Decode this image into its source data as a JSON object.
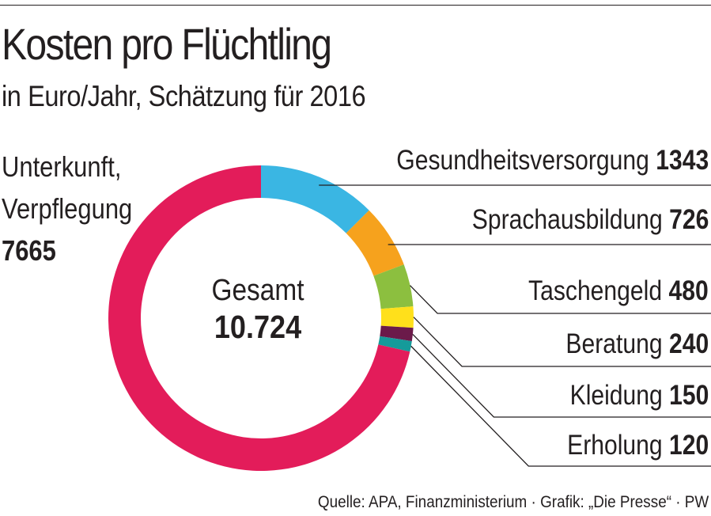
{
  "header": {
    "title": "Kosten pro Flüchtling",
    "subtitle": "in Euro/Jahr, Schätzung für 2016"
  },
  "center": {
    "label": "Gesamt",
    "total": "10.724"
  },
  "source": "Quelle: APA, Finanzministerium · Grafik: „Die Presse“ · PW",
  "chart_data": {
    "type": "pie",
    "donut": true,
    "total": 10724,
    "slices": [
      {
        "label": "Gesundheitsversorgung",
        "value": 1343,
        "value_text": "1343",
        "color": "#3ab6e3"
      },
      {
        "label": "Sprachausbildung",
        "value": 726,
        "value_text": "726",
        "color": "#f6a21d"
      },
      {
        "label": "Taschengeld",
        "value": 480,
        "value_text": "480",
        "color": "#8cbf3f"
      },
      {
        "label": "Beratung",
        "value": 240,
        "value_text": "240",
        "color": "#ffe01b"
      },
      {
        "label": "Kleidung",
        "value": 150,
        "value_text": "150",
        "color": "#6b1a4a"
      },
      {
        "label": "Erholung",
        "value": 120,
        "value_text": "120",
        "color": "#159b9a"
      },
      {
        "label": "Unterkunft, Verpflegung",
        "label_lines": [
          "Unterkunft,",
          "Verpflegung"
        ],
        "value": 7665,
        "value_text": "7665",
        "color": "#e31c5a"
      }
    ]
  }
}
